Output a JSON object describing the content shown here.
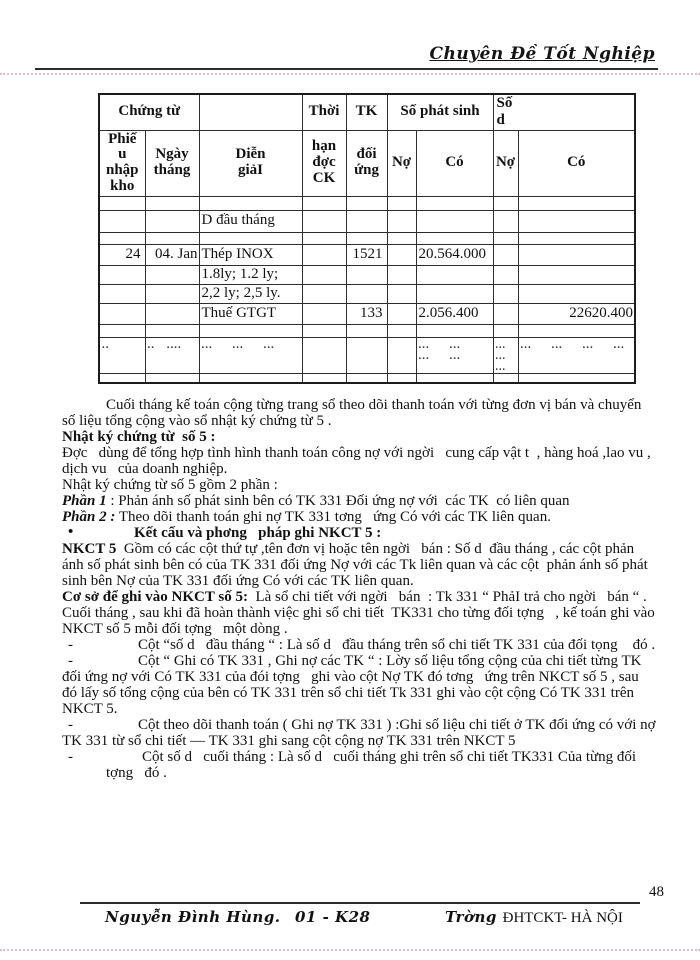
{
  "header": {
    "title": "Chuyên Đề Tốt Nghiệp"
  },
  "table": {
    "h1": {
      "chung_tu": "Chứng từ",
      "thoi": "Thời",
      "tk": "TK",
      "so_phat_sinh": "Số phát sinh",
      "so_d": "Số\nd"
    },
    "h2": {
      "phieu_nhap_kho": "Phiế\nu\nnhập\nkho",
      "ngay_thang": "Ngày\ntháng",
      "dien_giai": "Diễn\ngiảI",
      "han_doc_ck": "hạn\nđợc\nCK",
      "doi_ung": "đối\nứng",
      "no_ps": "Nợ",
      "co_ps": "Có",
      "no_d": "Nợ",
      "co_d": "Có"
    },
    "rows": [
      [
        "",
        "",
        "",
        "",
        "",
        "",
        "",
        "",
        ""
      ],
      [
        "",
        "",
        "D  đầu tháng",
        "",
        "",
        "",
        "",
        "",
        ""
      ],
      [
        "",
        "",
        "",
        "",
        "",
        "",
        "",
        "",
        ""
      ],
      [
        "24",
        "04. Jan",
        "Thép INOX",
        "",
        "1521",
        "",
        "20.564.000",
        "",
        ""
      ],
      [
        "",
        "",
        "1.8ly; 1.2 ly;",
        "",
        "",
        "",
        "",
        "",
        ""
      ],
      [
        "",
        "",
        "2,2 ly; 2,5 ly.",
        "",
        "",
        "",
        "",
        "",
        ""
      ],
      [
        "",
        "",
        "Thuế GTGT",
        "",
        "133",
        "",
        "2.056.400",
        "",
        "22620.400"
      ],
      [
        "",
        "",
        "",
        "",
        "",
        "",
        "",
        "",
        ""
      ],
      [
        "..",
        ".. ....",
        "... ... ...",
        "",
        "",
        "",
        "... ... ... ...",
        "... ... ...",
        "... ... ... ..."
      ],
      [
        "",
        "",
        "",
        "",
        "",
        "",
        "",
        "",
        ""
      ]
    ]
  },
  "body": {
    "markers": {
      "bullet": "•",
      "dash": "-"
    },
    "p1": {
      "text": "Cuối tháng kế toán cộng từng trang sổ theo dõi thanh toán với từng đơn vị bán và chuyển số liệu tổng cộng vào sổ nhật ký chứng từ 5 ."
    },
    "p2": {
      "text": "Nhật ký chứng từ  số 5 :"
    },
    "p3": {
      "text": "Đợc   dùng để tổng hợp tình hình thanh toán công nợ với ngời   cung cấp vật t  , hàng hoá ,lao vu , dịch vu   của doanh nghiệp."
    },
    "p4": {
      "text": "Nhật ký chứng từ số 5 gồm 2 phần :"
    },
    "p5": {
      "lead": "Phần 1",
      "text": " : Phản ánh số phát sinh bên có TK 331 Đối ứng nợ với  các TK  có liên quan"
    },
    "p6": {
      "lead": "Phần 2 :",
      "text": " Theo dõi thanh toán ghi nợ TK 331 tơng   ứng Có với các TK liên quan."
    },
    "p7": {
      "text": "Kết cấu và phơng   pháp ghi NKCT 5 :"
    },
    "p8": {
      "lead": "NKCT 5",
      "text": "  Gồm có các cột thứ tự ,tên đơn vị hoặc tên ngời   bán : Số d  đầu tháng , các cột phản ánh số phát sinh bên có của TK 331 đối ứng Nợ với các Tk liên quan và các cột  phản ánh số phát sinh bên Nợ của TK 331 đối ứng Có với các TK liên quan."
    },
    "p9": {
      "lead": "Cơ sở để ghi vào NKCT số 5:",
      "text": "  Là sổ chi tiết với ngời   bán  : Tk 331 “ PhảI trả cho ngời   bán “ . Cuối tháng , sau khi đã hoàn thành việc ghi sổ chi tiết  TK331 cho từng đối tợng   , kế toán ghi vào NKCT số 5 mỗi đối tợng   một dòng ."
    },
    "p10": {
      "text": "Cột “số d   đầu tháng “ : Là số d   đầu tháng trên sổ chi tiết TK 331 của đối tọng    đó ."
    },
    "p11": {
      "text": "Cột “ Ghi có TK 331 , Ghi nợ các TK “ : Lờy số liệu tổng cộng của chi tiết từng TK đối ứng nợ với Có TK 331 của đói tợng   ghi vào cột Nợ TK đó tơng   ứng trên NKCT số 5 , sau đó lấy số tổng cộng của bên có TK 331 trên sổ chi tiết Tk 331 ghi vào cột cộng Có TK 331 trên NKCT 5."
    },
    "p12": {
      "text": "Cột theo dõi thanh toán ( Ghi nợ TK 331 ) :Ghi số liệu chi tiết ở TK đối ứng có với nợ TK 331 từ sổ chi tiết — TK 331 ghi sang cột cộng nợ TK 331 trên NKCT 5"
    },
    "p13": {
      "text": "Cột số d   cuối tháng : Là số d   cuối tháng ghi trên sổ chi tiết TK331 Của từng đối tợng   đó ."
    }
  },
  "footer": {
    "page_number": "48",
    "author": "Nguyễn Đình Hùng.",
    "class_id": "01 - K28",
    "school_prefix": "Trờng",
    "school": "ĐHTCKT- HÀ NỘI"
  }
}
